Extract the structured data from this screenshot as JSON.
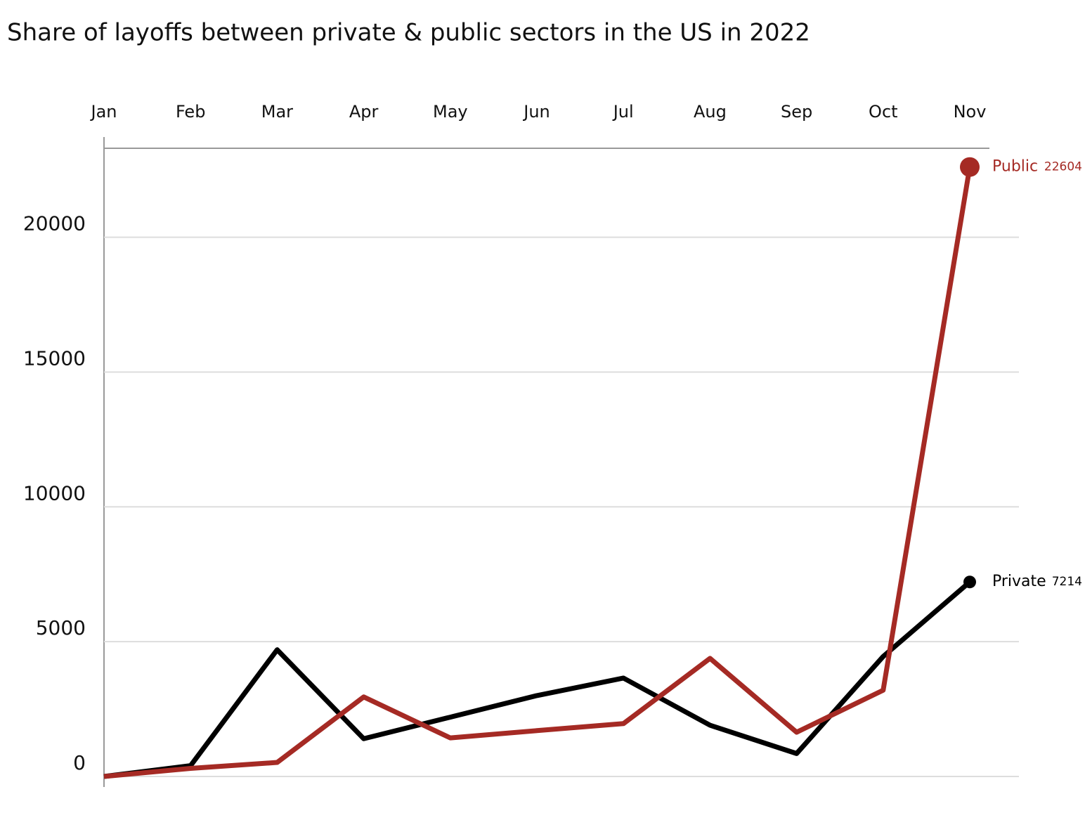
{
  "chart_data": {
    "type": "line",
    "title": "Share of layoffs between private & public sectors in the US in 2022",
    "categories": [
      "Jan",
      "Feb",
      "Mar",
      "Apr",
      "May",
      "Jun",
      "Jul",
      "Aug",
      "Sep",
      "Oct",
      "Nov"
    ],
    "series": [
      {
        "name": "Private",
        "color": "#000000",
        "values": [
          0,
          400,
          4700,
          1400,
          2200,
          3000,
          3650,
          1900,
          850,
          4450,
          7214
        ]
      },
      {
        "name": "Public",
        "color": "#a52a24",
        "values": [
          0,
          300,
          520,
          2950,
          1430,
          1700,
          1960,
          4380,
          1640,
          3200,
          22604
        ]
      }
    ],
    "ylim": [
      0,
      23300
    ],
    "yticks": [
      0,
      5000,
      10000,
      15000,
      20000
    ],
    "grid": true
  }
}
